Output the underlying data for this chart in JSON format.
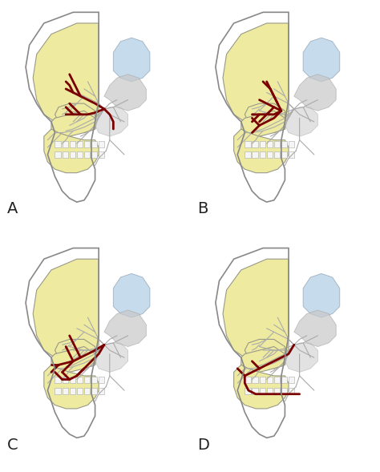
{
  "background_color": "#ffffff",
  "panel_labels": [
    "A",
    "B",
    "C",
    "D"
  ],
  "label_fontsize": 14,
  "skull_fill": "#eeeba0",
  "skull_edge": "#999988",
  "skull_lw": 0.8,
  "skin_edge": "#888888",
  "skin_lw": 1.2,
  "nerve_color": "#7a0000",
  "gray_nerve_color": "#aaaaaa",
  "brain_fill": "#b8d4e8",
  "brain_edge": "#99aabb",
  "figsize": [
    4.74,
    5.89
  ],
  "dpi": 100,
  "inner_skull_fill": "#ddd8a0",
  "cavity_fill": "#c8c8c8"
}
